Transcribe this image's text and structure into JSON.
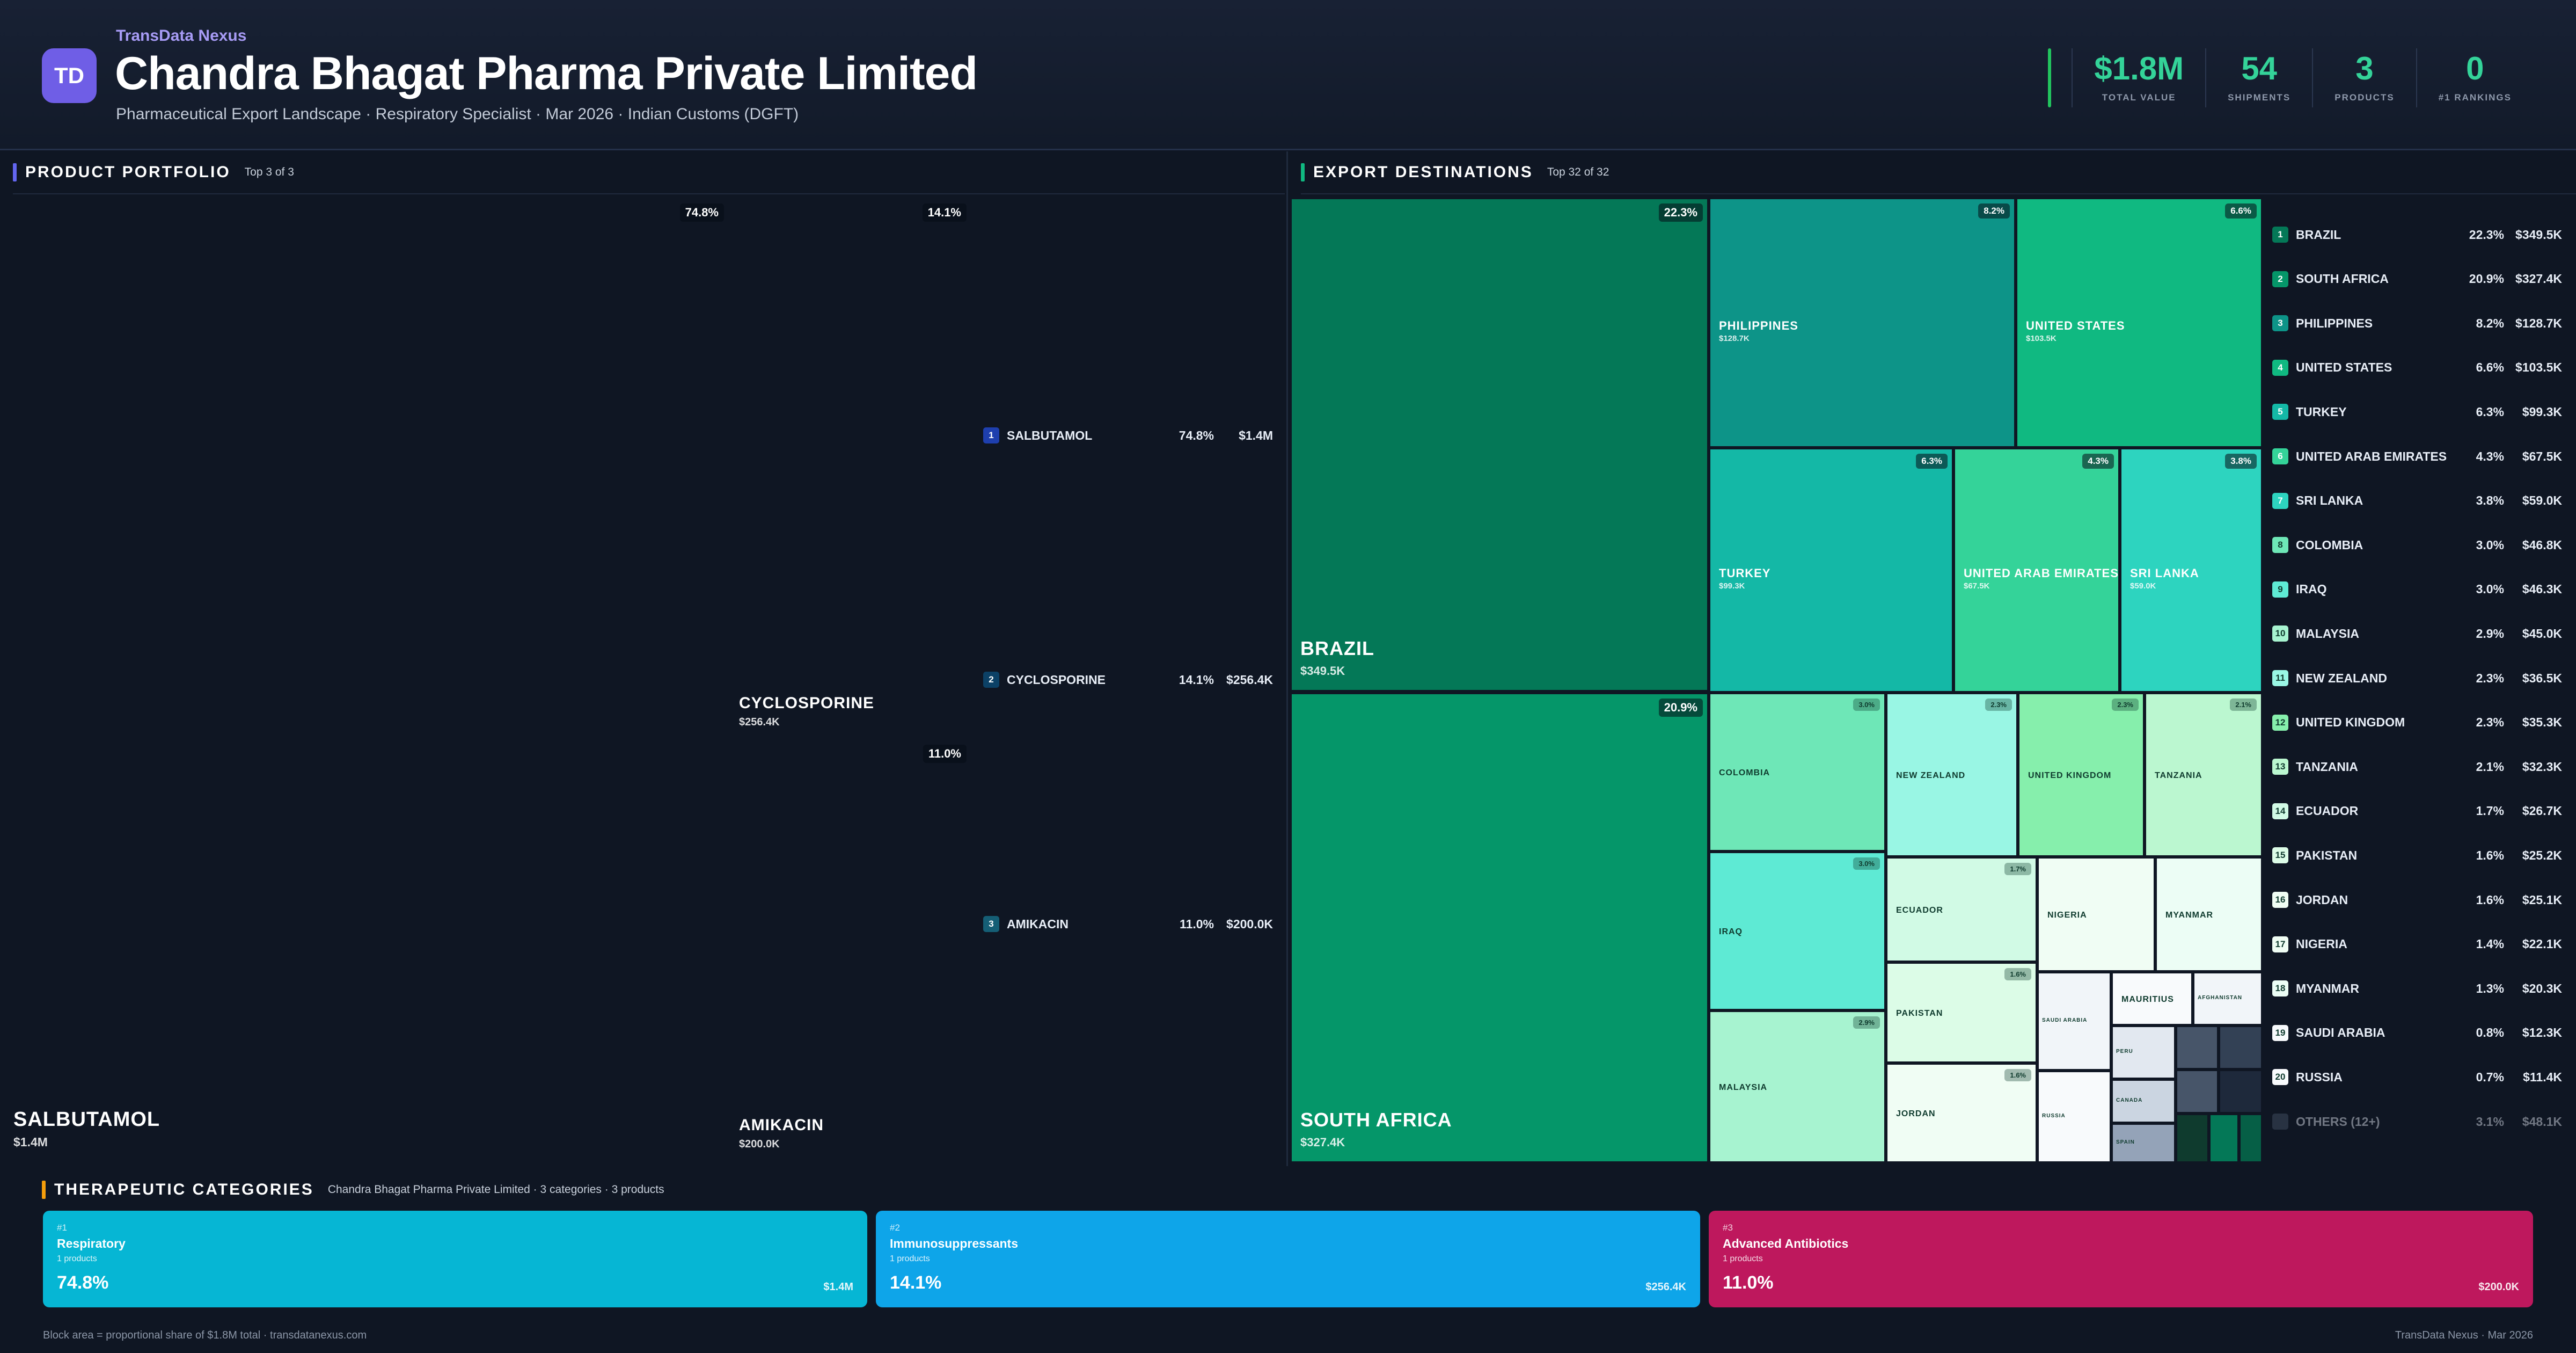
{
  "header": {
    "logo_text": "TD",
    "brand": "TransData Nexus",
    "title": "Chandra Bhagat Pharma Private Limited",
    "subtitle": "Pharmaceutical Export Landscape · Respiratory Specialist · Mar 2026 · Indian Customs (DGFT)",
    "kpis": [
      {
        "value": "$1.8M",
        "label": "TOTAL VALUE"
      },
      {
        "value": "54",
        "label": "SHIPMENTS"
      },
      {
        "value": "3",
        "label": "PRODUCTS"
      },
      {
        "value": "0",
        "label": "#1 RANKINGS"
      }
    ]
  },
  "portfolio": {
    "title": "PRODUCT PORTFOLIO",
    "subtitle": "Top 3 of 3",
    "items": [
      {
        "rank": "1",
        "name": "SALBUTAMOL",
        "pct": "74.8%",
        "value": "$1.4M",
        "share": 74.8,
        "color": "#1e3fae"
      },
      {
        "rank": "2",
        "name": "CYCLOSPORINE",
        "pct": "14.1%",
        "value": "$256.4K",
        "share": 14.1,
        "color": "#0c4166"
      },
      {
        "rank": "3",
        "name": "AMIKACIN",
        "pct": "11.0%",
        "value": "$200.0K",
        "share": 11.0,
        "color": "#155e75"
      }
    ]
  },
  "destinations": {
    "title": "EXPORT DESTINATIONS",
    "subtitle": "Top 32 of 32",
    "ranked": [
      {
        "rank": "1",
        "name": "BRAZIL",
        "pct": "22.3%",
        "value": "$349.5K",
        "color": "#047857"
      },
      {
        "rank": "2",
        "name": "SOUTH AFRICA",
        "pct": "20.9%",
        "value": "$327.4K",
        "color": "#059669"
      },
      {
        "rank": "3",
        "name": "PHILIPPINES",
        "pct": "8.2%",
        "value": "$128.7K",
        "color": "#0d9488"
      },
      {
        "rank": "4",
        "name": "UNITED STATES",
        "pct": "6.6%",
        "value": "$103.5K",
        "color": "#10b981"
      },
      {
        "rank": "5",
        "name": "TURKEY",
        "pct": "6.3%",
        "value": "$99.3K",
        "color": "#14b8a6"
      },
      {
        "rank": "6",
        "name": "UNITED ARAB EMIRATES",
        "pct": "4.3%",
        "value": "$67.5K",
        "color": "#34d399"
      },
      {
        "rank": "7",
        "name": "SRI LANKA",
        "pct": "3.8%",
        "value": "$59.0K",
        "color": "#2dd4bf"
      },
      {
        "rank": "8",
        "name": "COLOMBIA",
        "pct": "3.0%",
        "value": "$46.8K",
        "color": "#6ee7b7"
      },
      {
        "rank": "9",
        "name": "IRAQ",
        "pct": "3.0%",
        "value": "$46.3K",
        "color": "#5eead4"
      },
      {
        "rank": "10",
        "name": "MALAYSIA",
        "pct": "2.9%",
        "value": "$45.0K",
        "color": "#a7f3d0"
      },
      {
        "rank": "11",
        "name": "NEW ZEALAND",
        "pct": "2.3%",
        "value": "$36.5K",
        "color": "#99f6e4"
      },
      {
        "rank": "12",
        "name": "UNITED KINGDOM",
        "pct": "2.3%",
        "value": "$35.3K",
        "color": "#86efac"
      },
      {
        "rank": "13",
        "name": "TANZANIA",
        "pct": "2.1%",
        "value": "$32.3K",
        "color": "#bbf7d0"
      },
      {
        "rank": "14",
        "name": "ECUADOR",
        "pct": "1.7%",
        "value": "$26.7K",
        "color": "#d1fae5"
      },
      {
        "rank": "15",
        "name": "PAKISTAN",
        "pct": "1.6%",
        "value": "$25.2K",
        "color": "#dcfce7"
      },
      {
        "rank": "16",
        "name": "JORDAN",
        "pct": "1.6%",
        "value": "$25.1K",
        "color": "#f0fdf4"
      },
      {
        "rank": "17",
        "name": "NIGERIA",
        "pct": "1.4%",
        "value": "$22.1K",
        "color": "#f0fdf4"
      },
      {
        "rank": "18",
        "name": "MYANMAR",
        "pct": "1.3%",
        "value": "$20.3K",
        "color": "#ecfdf5"
      },
      {
        "rank": "19",
        "name": "SAUDI ARABIA",
        "pct": "0.8%",
        "value": "$12.3K",
        "color": "#f8fafc"
      },
      {
        "rank": "20",
        "name": "RUSSIA",
        "pct": "0.7%",
        "value": "$11.4K",
        "color": "#f8fafc"
      }
    ],
    "others": {
      "name": "OTHERS (12+)",
      "pct": "3.1%",
      "value": "$48.1K"
    },
    "tiles": [
      {
        "name": "BRAZIL",
        "pct": "22.3%",
        "value": "$349.5K",
        "color": "#047857"
      },
      {
        "name": "SOUTH AFRICA",
        "pct": "20.9%",
        "value": "$327.4K",
        "color": "#059669"
      },
      {
        "name": "PHILIPPINES",
        "pct": "8.2%",
        "value": "$128.7K",
        "color": "#0d9488"
      },
      {
        "name": "UNITED STATES",
        "pct": "6.6%",
        "value": "$103.5K",
        "color": "#10b981"
      },
      {
        "name": "TURKEY",
        "pct": "6.3%",
        "value": "$99.3K",
        "color": "#14b8a6"
      },
      {
        "name": "UNITED ARAB EMIRATES",
        "pct": "4.3%",
        "value": "$67.5K",
        "color": "#34d399"
      },
      {
        "name": "SRI LANKA",
        "pct": "3.8%",
        "value": "$59.0K",
        "color": "#2dd4bf"
      },
      {
        "name": "COLOMBIA",
        "pct": "3.0%",
        "value": "",
        "color": "#6ee7b7"
      },
      {
        "name": "IRAQ",
        "pct": "3.0%",
        "value": "",
        "color": "#5eead4"
      },
      {
        "name": "MALAYSIA",
        "pct": "2.9%",
        "value": "",
        "color": "#a7f3d0"
      },
      {
        "name": "NEW ZEALAND",
        "pct": "2.3%",
        "value": "",
        "color": "#99f6e4"
      },
      {
        "name": "UNITED KINGDOM",
        "pct": "2.3%",
        "value": "",
        "color": "#86efac"
      },
      {
        "name": "TANZANIA",
        "pct": "2.1%",
        "value": "",
        "color": "#bbf7d0"
      },
      {
        "name": "ECUADOR",
        "pct": "1.7%",
        "value": "",
        "color": "#d1fae5"
      },
      {
        "name": "PAKISTAN",
        "pct": "1.6%",
        "value": "",
        "color": "#dcfce7"
      },
      {
        "name": "JORDAN",
        "pct": "1.6%",
        "value": "",
        "color": "#f0fdf4"
      },
      {
        "name": "NIGERIA",
        "pct": "",
        "value": "",
        "color": "#f0fdf4"
      },
      {
        "name": "MYANMAR",
        "pct": "",
        "value": "",
        "color": "#ecfdf5"
      },
      {
        "name": "SAUDI ARABIA",
        "pct": "",
        "value": "",
        "color": "#f1f5f9"
      },
      {
        "name": "RUSSIA",
        "pct": "",
        "value": "",
        "color": "#f8fafc"
      },
      {
        "name": "MAURITIUS",
        "pct": "",
        "value": "",
        "color": "#f8fafc"
      },
      {
        "name": "AFGHANISTAN",
        "pct": "",
        "value": "",
        "color": "#f1f5f9"
      },
      {
        "name": "PERU",
        "pct": "",
        "value": "",
        "color": "#e2e8f0"
      },
      {
        "name": "CANADA",
        "pct": "",
        "value": "",
        "color": "#cbd5e1"
      },
      {
        "name": "SPAIN",
        "pct": "",
        "value": "",
        "color": "#94a3b8"
      },
      {
        "name": "",
        "pct": "",
        "value": "",
        "color": "#475569"
      },
      {
        "name": "",
        "pct": "",
        "value": "",
        "color": "#334155"
      },
      {
        "name": "",
        "pct": "",
        "value": "",
        "color": "#475569"
      },
      {
        "name": "",
        "pct": "",
        "value": "",
        "color": "#1e293b"
      },
      {
        "name": "",
        "pct": "",
        "value": "",
        "color": "#0f3b2e"
      },
      {
        "name": "",
        "pct": "",
        "value": "",
        "color": "#047857"
      },
      {
        "name": "",
        "pct": "",
        "value": "",
        "color": "#065f46"
      }
    ]
  },
  "categories": {
    "title": "THERAPEUTIC CATEGORIES",
    "subtitle": "Chandra Bhagat Pharma Private Limited · 3 categories · 3 products",
    "items": [
      {
        "rank": "#1",
        "name": "Respiratory",
        "count": "1 products",
        "pct": "74.8%",
        "value": "$1.4M",
        "color": "#06b6d4"
      },
      {
        "rank": "#2",
        "name": "Immunosuppressants",
        "count": "1 products",
        "pct": "14.1%",
        "value": "$256.4K",
        "color": "#0ea5e9"
      },
      {
        "rank": "#3",
        "name": "Advanced Antibiotics",
        "count": "1 products",
        "pct": "11.0%",
        "value": "$200.0K",
        "color": "#be185d"
      }
    ]
  },
  "footer": {
    "left": "Block area = proportional share of $1.8M total · transdatanexus.com",
    "right": "TransData Nexus · Mar 2026"
  },
  "colors": {
    "accent_kpi": "#34d399",
    "portfolio_bar": "#6366f1",
    "destinations_bar": "#10b981",
    "categories_bar": "#f59e0b"
  }
}
